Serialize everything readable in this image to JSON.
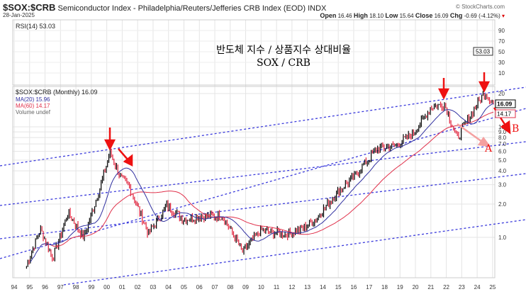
{
  "header": {
    "symbol": "$SOX:$CRB",
    "description": "Semiconductor Index - Philadelphia/Reuters/Jefferies CRB Index (EOD)",
    "exchange": "INDX",
    "date": "28-Jan-2025",
    "brand": "© StockCharts.com",
    "open_label": "Open",
    "open": "16.46",
    "high_label": "High",
    "high": "18.10",
    "low_label": "Low",
    "low": "15.64",
    "close_label": "Close",
    "close": "16.09",
    "chg_label": "Chg",
    "chg": "-0.69 (-4.12%)"
  },
  "annotation": {
    "title_ko": "반도체 지수 / 상품지수 상대비율",
    "subtitle": "SOX / CRB",
    "label_a": "A",
    "label_b": "B"
  },
  "colors": {
    "price": "#000000",
    "down": "#e0203a",
    "ma20": "#3030a0",
    "ma60": "#e0304a",
    "channel": "#3b3bdc",
    "arrow": "#ee1111",
    "arrow_a": "#f4a0a0"
  },
  "chart_data": {
    "type": "line",
    "title": "$SOX:$CRB (Monthly)",
    "scale": "log",
    "legend": {
      "placement": "top-left",
      "price": "$SOX:$CRB (Monthly) 16.09",
      "ma20": "MA(20) 15.96",
      "ma60": "MA(60) 14.17",
      "volume": "Volume undef"
    },
    "rsi": {
      "label": "RSI(14) 53.03",
      "value": 53.03,
      "ticks": [
        "90",
        "70",
        "50",
        "30",
        "10"
      ]
    },
    "x_ticks": [
      "94",
      "95",
      "96",
      "97",
      "98",
      "99",
      "00",
      "01",
      "02",
      "03",
      "04",
      "05",
      "06",
      "07",
      "08",
      "09",
      "10",
      "11",
      "12",
      "13",
      "14",
      "15",
      "16",
      "17",
      "18",
      "19",
      "20",
      "21",
      "22",
      "23",
      "24",
      "25"
    ],
    "y_ticks": [
      1.0,
      2.0,
      3.0,
      4.0,
      5.0,
      6.0,
      7.0,
      8.0,
      9.0,
      10,
      20
    ],
    "y_tick_labels": [
      "1.0",
      "2.0",
      "3.0",
      "4.0",
      "5.0",
      "6.0",
      "7.0",
      "8.0",
      "9.0",
      "10",
      "20"
    ],
    "ylim": [
      0.5,
      25
    ],
    "xlim": [
      1994,
      2025.1
    ],
    "badges": {
      "price": "16.09",
      "ma60": "14.17",
      "rsi": "53.03"
    },
    "series_keypoints": {
      "x": [
        1994.8,
        1995.7,
        1996.5,
        1997.5,
        1998.5,
        1999.5,
        2000.2,
        2000.9,
        2001.5,
        2002.7,
        2003.9,
        2005,
        2006,
        2007.5,
        2008.8,
        2010,
        2011.5,
        2012.5,
        2013.5,
        2015,
        2016,
        2017.5,
        2018.8,
        2020,
        2021,
        2021.9,
        2022.7,
        2023.5,
        2024.5,
        2025.05
      ],
      "y": [
        0.55,
        1.2,
        0.64,
        1.67,
        1.0,
        2.6,
        5.9,
        3.5,
        2.8,
        1.07,
        1.94,
        1.45,
        1.56,
        1.56,
        0.74,
        1.16,
        1.07,
        1.16,
        1.45,
        2.6,
        3.5,
        6.3,
        6.8,
        9.2,
        15,
        16,
        7.9,
        12.3,
        20.6,
        16.09
      ]
    }
  }
}
